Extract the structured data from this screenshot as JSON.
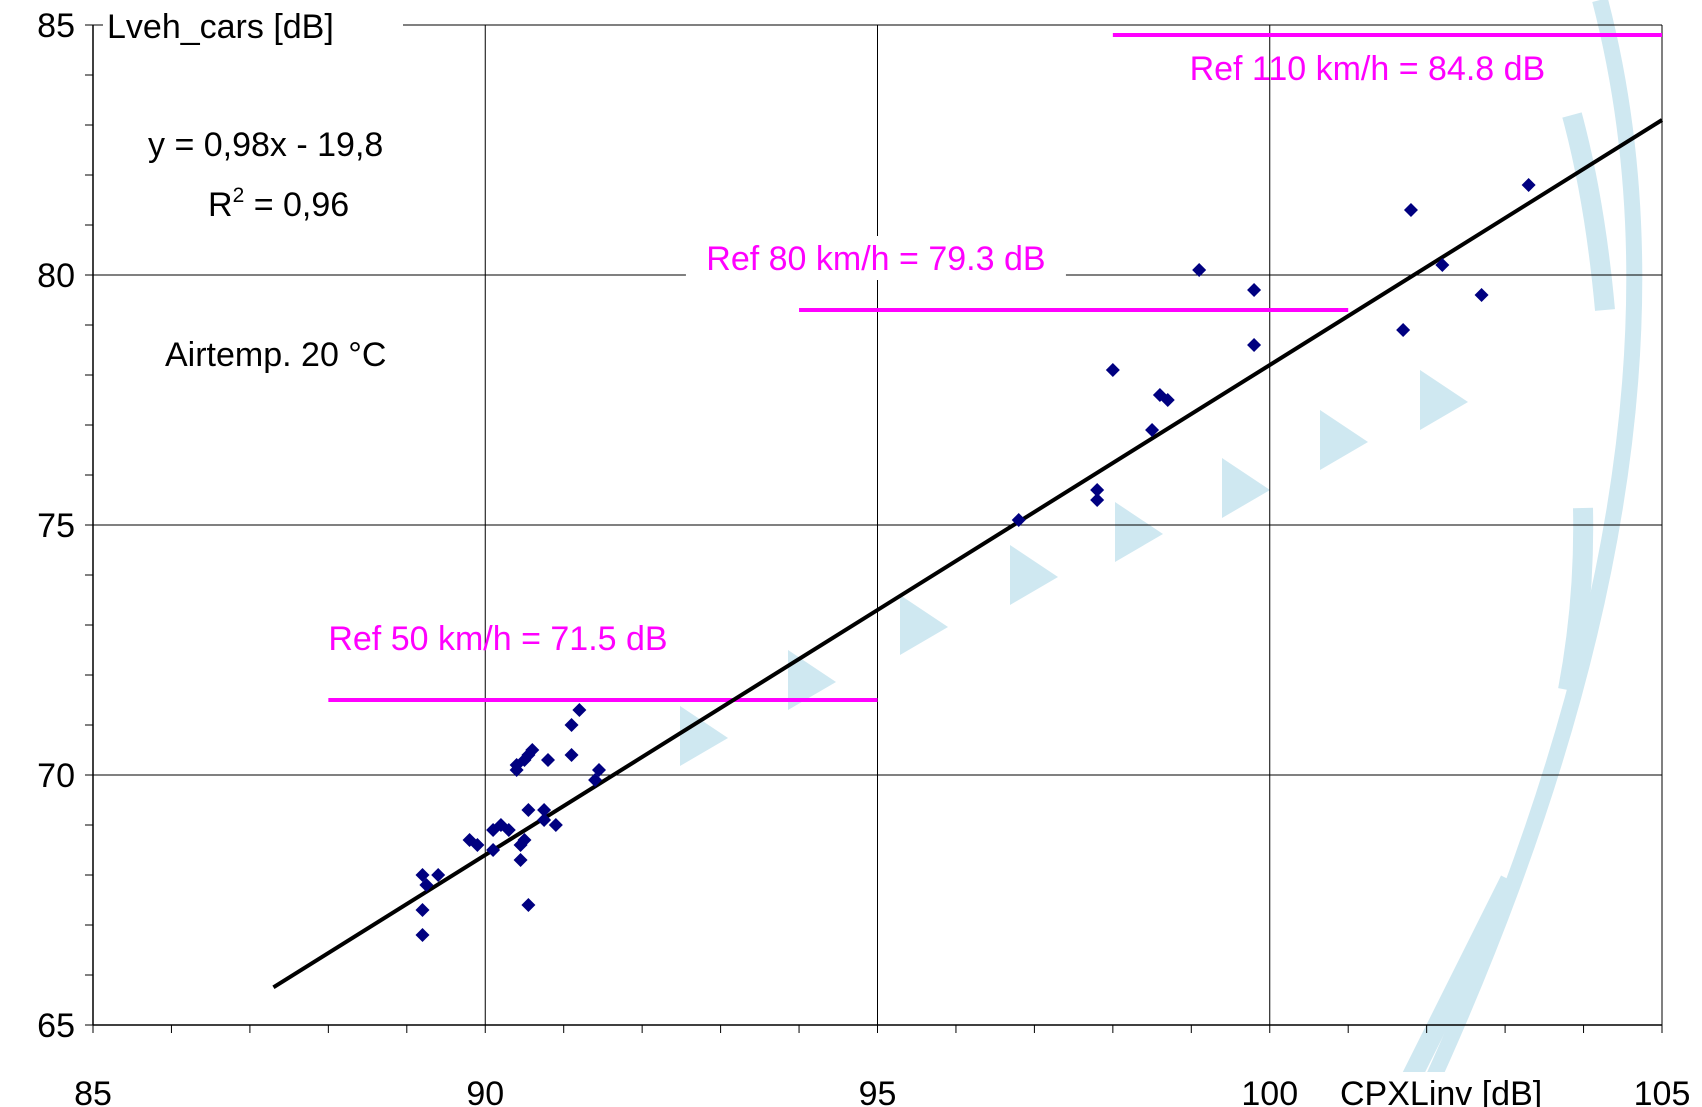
{
  "chart_data": {
    "type": "scatter",
    "title": "",
    "xlabel": "CPXLinv  [dB]",
    "ylabel": "Lveh_cars [dB]",
    "xlim": [
      85,
      105
    ],
    "ylim": [
      65,
      85
    ],
    "x_ticks": [
      "85",
      "90",
      "95",
      "100",
      "105"
    ],
    "y_ticks": [
      "65",
      "70",
      "75",
      "80",
      "85"
    ],
    "grid": true,
    "series": [
      {
        "marker": "diamond",
        "color": "#000080",
        "points": [
          [
            89.2,
            68.0
          ],
          [
            89.2,
            67.3
          ],
          [
            89.2,
            66.8
          ],
          [
            89.25,
            67.8
          ],
          [
            89.4,
            68.0
          ],
          [
            89.8,
            68.7
          ],
          [
            89.9,
            68.6
          ],
          [
            90.1,
            68.9
          ],
          [
            90.1,
            68.5
          ],
          [
            90.2,
            69.0
          ],
          [
            90.3,
            68.9
          ],
          [
            90.4,
            70.1
          ],
          [
            90.4,
            70.2
          ],
          [
            90.45,
            68.6
          ],
          [
            90.45,
            68.3
          ],
          [
            90.5,
            70.3
          ],
          [
            90.5,
            68.7
          ],
          [
            90.55,
            70.4
          ],
          [
            90.55,
            69.3
          ],
          [
            90.55,
            67.4
          ],
          [
            90.6,
            70.5
          ],
          [
            90.75,
            69.3
          ],
          [
            90.75,
            69.1
          ],
          [
            90.8,
            70.3
          ],
          [
            90.9,
            69.0
          ],
          [
            91.1,
            71.0
          ],
          [
            91.1,
            70.4
          ],
          [
            91.2,
            71.3
          ],
          [
            91.4,
            69.9
          ],
          [
            91.45,
            70.1
          ],
          [
            96.8,
            75.1
          ],
          [
            97.8,
            75.7
          ],
          [
            97.8,
            75.5
          ],
          [
            98.0,
            78.1
          ],
          [
            98.5,
            76.9
          ],
          [
            98.6,
            77.6
          ],
          [
            98.7,
            77.5
          ],
          [
            99.1,
            80.1
          ],
          [
            99.8,
            79.7
          ],
          [
            99.8,
            78.6
          ],
          [
            101.7,
            78.9
          ],
          [
            101.8,
            81.3
          ],
          [
            102.2,
            80.2
          ],
          [
            102.7,
            79.6
          ],
          [
            103.3,
            81.8
          ]
        ]
      }
    ],
    "trendline": {
      "equation": "y = 0,98x - 19,8",
      "r2_label": "R",
      "r2_value": " = 0,96",
      "slope": 0.98,
      "intercept": -19.8,
      "x_range": [
        87.3,
        105
      ],
      "color": "#000000"
    },
    "reference_lines": [
      {
        "label": "Ref 50 km/h = 71.5 dB",
        "y": 71.5,
        "x_range": [
          88,
          95
        ],
        "color": "#ff00ff"
      },
      {
        "label": "Ref 80 km/h = 79.3 dB",
        "y": 79.3,
        "x_range": [
          94,
          101
        ],
        "color": "#ff00ff"
      },
      {
        "label": "Ref 110 km/h = 84.8 dB",
        "y": 84.8,
        "x_range": [
          98,
          105
        ],
        "color": "#ff00ff"
      }
    ],
    "annotations": [
      "Airtemp. 20 °C"
    ]
  },
  "watermark": {
    "color": "#cfe8f1",
    "icon": "speed-arcs-watermark"
  }
}
